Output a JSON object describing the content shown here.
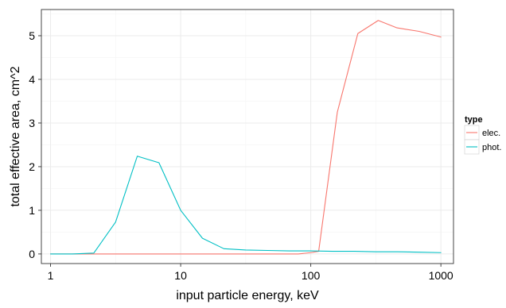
{
  "chart_data": {
    "type": "line",
    "title": "",
    "xlabel": "input particle energy, keV",
    "ylabel": "total effective area, cm^2",
    "x_scale": "log10",
    "xlim": [
      0.85,
      1250
    ],
    "ylim": [
      -0.22,
      5.6
    ],
    "x_ticks": [
      1,
      10,
      100,
      1000
    ],
    "x_tick_labels": [
      "1",
      "10",
      "100",
      "1000"
    ],
    "y_ticks": [
      0,
      1,
      2,
      3,
      4,
      5
    ],
    "y_tick_labels": [
      "0",
      "1",
      "2",
      "3",
      "4",
      "5"
    ],
    "grid": true,
    "legend": {
      "title": "type",
      "position": "right"
    },
    "series": [
      {
        "name": "elec.",
        "color": "#F8766D",
        "x": [
          1,
          1.47,
          2.15,
          3.16,
          4.64,
          6.81,
          10,
          14.7,
          21.5,
          31.6,
          46.4,
          68.1,
          80,
          100,
          115,
          160,
          230,
          330,
          460,
          680,
          1000
        ],
        "y": [
          0,
          0,
          0,
          0,
          0,
          0,
          0,
          0,
          0,
          0,
          0,
          0,
          0,
          0.03,
          0.06,
          3.25,
          5.05,
          5.35,
          5.18,
          5.1,
          4.97
        ]
      },
      {
        "name": "phot.",
        "color": "#00BFC4",
        "x": [
          1,
          1.47,
          2.15,
          3.16,
          4.64,
          6.81,
          10,
          14.7,
          21.5,
          31.6,
          46.4,
          68.1,
          100,
          147,
          215,
          316,
          464,
          681,
          1000
        ],
        "y": [
          0,
          0,
          0.02,
          0.73,
          2.24,
          2.09,
          1.0,
          0.36,
          0.12,
          0.09,
          0.08,
          0.07,
          0.07,
          0.06,
          0.06,
          0.05,
          0.05,
          0.04,
          0.03
        ]
      }
    ]
  }
}
